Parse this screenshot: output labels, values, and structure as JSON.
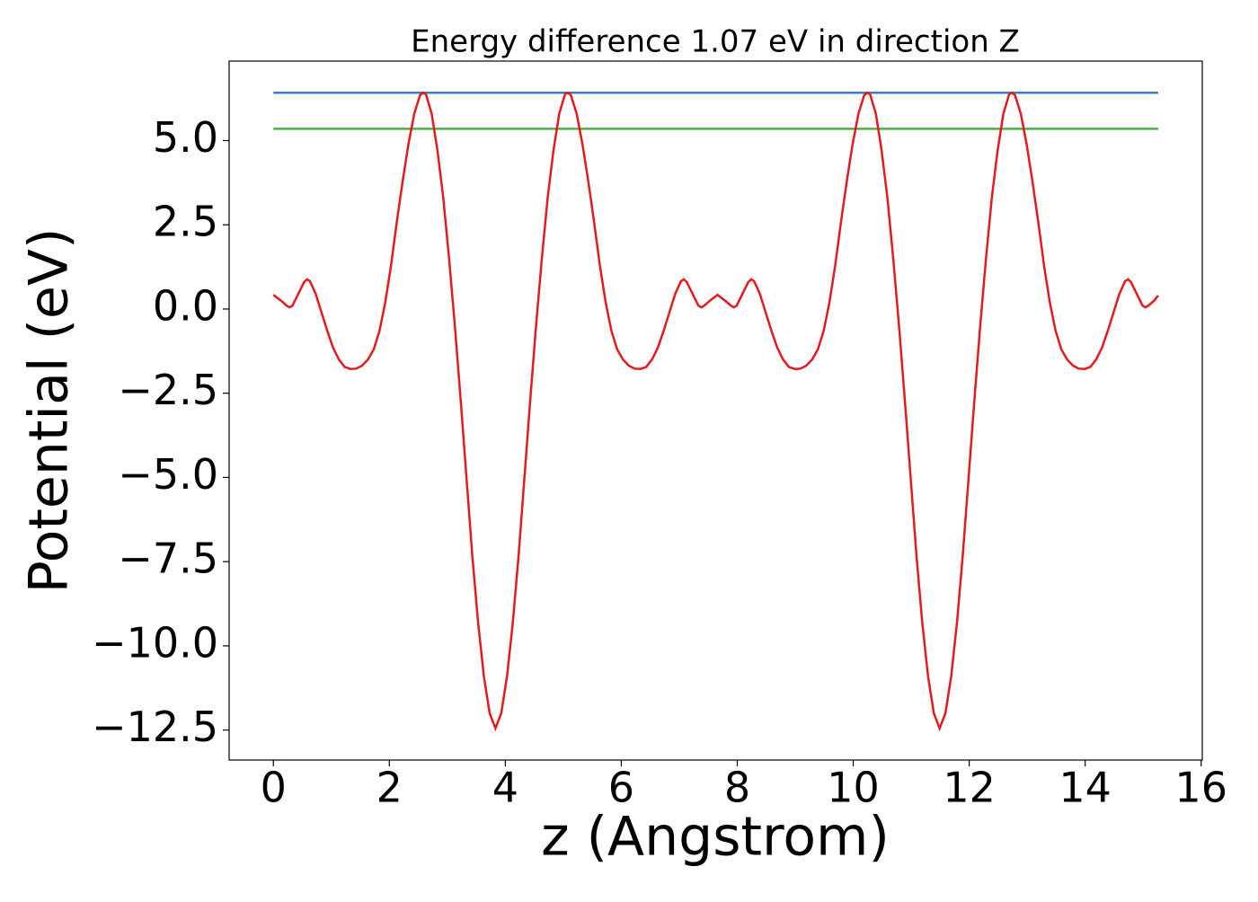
{
  "chart_data": {
    "type": "line",
    "title": "Energy difference 1.07 eV in direction Z",
    "x_label": "z (Angstrom)",
    "y_label": "Potential (eV)",
    "xlim": [
      -0.763,
      16.02
    ],
    "ylim": [
      -13.39,
      7.36
    ],
    "xticks": [
      0,
      2,
      4,
      6,
      8,
      10,
      12,
      14,
      16
    ],
    "yticks": [
      {
        "value": -12.5,
        "label": "−12.5"
      },
      {
        "value": -10,
        "label": "−10.0"
      },
      {
        "value": -7.5,
        "label": "−7.5"
      },
      {
        "value": -5,
        "label": "−5.0"
      },
      {
        "value": -2.5,
        "label": "−2.5"
      },
      {
        "value": 0,
        "label": "0.0"
      },
      {
        "value": 2.5,
        "label": "2.5"
      },
      {
        "value": 5,
        "label": "5.0"
      }
    ],
    "series": [
      {
        "color": "#e41a1c",
        "x": [
          0,
          0.13,
          0.23,
          0.28,
          0.33,
          0.43,
          0.53,
          0.58,
          0.63,
          0.73,
          0.83,
          0.93,
          1.03,
          1.13,
          1.23,
          1.33,
          1.43,
          1.53,
          1.63,
          1.73,
          1.83,
          1.93,
          2.03,
          2.13,
          2.23,
          2.33,
          2.43,
          2.53,
          2.58,
          2.63,
          2.73,
          2.83,
          2.93,
          3.03,
          3.13,
          3.23,
          3.33,
          3.43,
          3.53,
          3.63,
          3.73,
          3.83,
          3.93,
          4.03,
          4.13,
          4.23,
          4.33,
          4.43,
          4.53,
          4.63,
          4.73,
          4.83,
          4.93,
          5.03,
          5.08,
          5.13,
          5.23,
          5.33,
          5.43,
          5.53,
          5.63,
          5.73,
          5.83,
          5.93,
          6.03,
          6.13,
          6.23,
          6.33,
          6.43,
          6.53,
          6.63,
          6.73,
          6.83,
          6.93,
          7.03,
          7.08,
          7.13,
          7.23,
          7.33,
          7.38,
          7.43,
          7.53,
          7.66,
          7.79,
          7.89,
          7.94,
          7.99,
          8.09,
          8.19,
          8.24,
          8.29,
          8.39,
          8.49,
          8.59,
          8.69,
          8.79,
          8.89,
          8.99,
          9.09,
          9.19,
          9.29,
          9.39,
          9.49,
          9.59,
          9.69,
          9.79,
          9.89,
          9.99,
          10.09,
          10.19,
          10.24,
          10.29,
          10.39,
          10.49,
          10.59,
          10.69,
          10.79,
          10.89,
          10.99,
          11.09,
          11.19,
          11.29,
          11.39,
          11.49,
          11.59,
          11.69,
          11.79,
          11.89,
          11.99,
          12.09,
          12.19,
          12.29,
          12.39,
          12.49,
          12.59,
          12.69,
          12.74,
          12.79,
          12.89,
          12.99,
          13.09,
          13.19,
          13.29,
          13.39,
          13.49,
          13.59,
          13.69,
          13.79,
          13.89,
          13.99,
          14.09,
          14.19,
          14.29,
          14.39,
          14.49,
          14.59,
          14.69,
          14.74,
          14.79,
          14.89,
          14.99,
          15.04,
          15.09,
          15.19,
          15.26
        ],
        "values": [
          0.42,
          0.25,
          0.1,
          0.05,
          0.1,
          0.45,
          0.8,
          0.88,
          0.83,
          0.45,
          -0.1,
          -0.65,
          -1.15,
          -1.5,
          -1.72,
          -1.78,
          -1.77,
          -1.68,
          -1.5,
          -1.2,
          -0.65,
          0.2,
          1.3,
          2.6,
          3.8,
          4.9,
          5.8,
          6.35,
          6.42,
          6.38,
          5.8,
          4.7,
          3.3,
          1.5,
          -0.5,
          -2.7,
          -5.0,
          -7.3,
          -9.3,
          -10.9,
          -12.0,
          -12.45,
          -12.0,
          -10.9,
          -9.3,
          -7.3,
          -5.0,
          -2.7,
          -0.5,
          1.5,
          3.3,
          4.7,
          5.8,
          6.38,
          6.42,
          6.35,
          5.8,
          4.9,
          3.8,
          2.6,
          1.3,
          0.2,
          -0.65,
          -1.2,
          -1.5,
          -1.68,
          -1.77,
          -1.78,
          -1.72,
          -1.5,
          -1.15,
          -0.65,
          -0.1,
          0.45,
          0.83,
          0.88,
          0.8,
          0.45,
          0.1,
          0.05,
          0.1,
          0.25,
          0.42,
          0.25,
          0.1,
          0.05,
          0.1,
          0.45,
          0.8,
          0.88,
          0.83,
          0.45,
          -0.1,
          -0.65,
          -1.15,
          -1.5,
          -1.72,
          -1.78,
          -1.77,
          -1.68,
          -1.5,
          -1.2,
          -0.65,
          0.2,
          1.3,
          2.6,
          3.8,
          4.9,
          5.8,
          6.35,
          6.42,
          6.38,
          5.8,
          4.7,
          3.3,
          1.5,
          -0.5,
          -2.7,
          -5.0,
          -7.3,
          -9.3,
          -10.9,
          -12.0,
          -12.45,
          -12.0,
          -10.9,
          -9.3,
          -7.3,
          -5.0,
          -2.7,
          -0.5,
          1.5,
          3.3,
          4.7,
          5.8,
          6.38,
          6.42,
          6.35,
          5.8,
          4.9,
          3.8,
          2.6,
          1.3,
          0.2,
          -0.65,
          -1.2,
          -1.5,
          -1.68,
          -1.77,
          -1.78,
          -1.72,
          -1.5,
          -1.15,
          -0.65,
          -0.1,
          0.45,
          0.83,
          0.88,
          0.8,
          0.45,
          0.1,
          0.05,
          0.1,
          0.25,
          0.4
        ]
      },
      {
        "color": "#3a7fc1",
        "x": [
          0,
          15.26
        ],
        "values": [
          6.42,
          6.42
        ]
      },
      {
        "color": "#4daf4a",
        "x": [
          0,
          15.26
        ],
        "values": [
          5.35,
          5.35
        ]
      }
    ]
  }
}
